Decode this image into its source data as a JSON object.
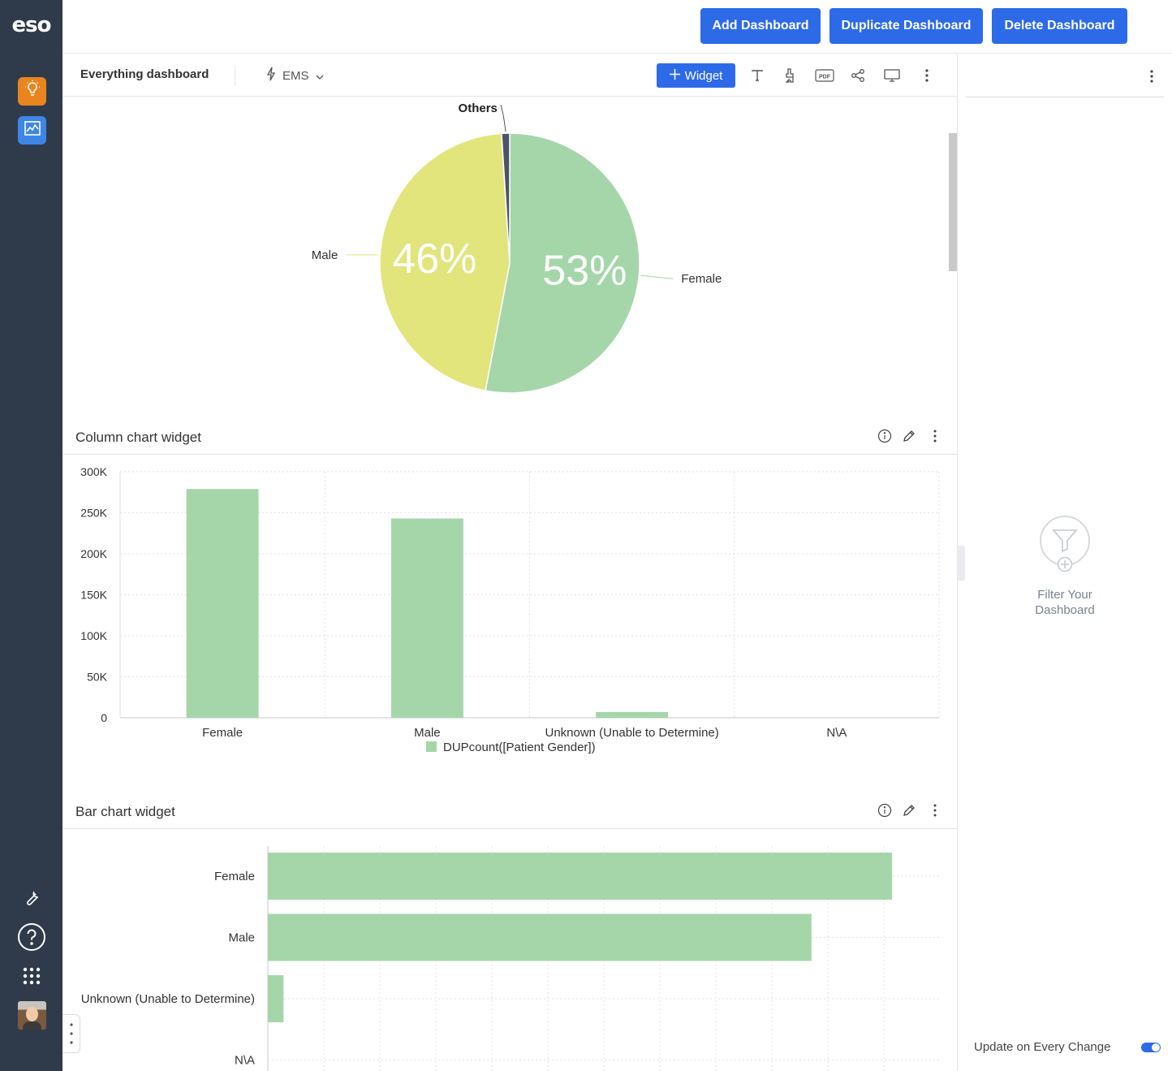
{
  "brand": {
    "logo_text": "eso"
  },
  "rail": {
    "apps": [
      {
        "icon": "lightbulb-icon",
        "color": "#e9851f"
      },
      {
        "icon": "analytics-chart-icon",
        "color": "#3d86e6"
      }
    ],
    "bottom_icons": [
      "wrench-icon",
      "help-icon",
      "app-grid-icon",
      "avatar"
    ]
  },
  "header": {
    "add_label": "Add Dashboard",
    "duplicate_label": "Duplicate Dashboard",
    "delete_label": "Delete Dashboard"
  },
  "toolbar": {
    "dashboard_title": "Everything dashboard",
    "datasource_label": "EMS",
    "widget_button_label": "Widget"
  },
  "pie_widget": {
    "chart_data": {
      "type": "pie",
      "slices": [
        {
          "label": "Female",
          "percent": 53,
          "percent_label": "53%",
          "color": "#a5d6aa"
        },
        {
          "label": "Male",
          "percent": 46,
          "percent_label": "46%",
          "color": "#e1e57c"
        },
        {
          "label": "Others",
          "percent": 1,
          "percent_label": "",
          "color": "#4e5467"
        }
      ]
    }
  },
  "column_widget": {
    "title": "Column chart widget",
    "chart_data": {
      "type": "bar",
      "categories": [
        "Female",
        "Male",
        "Unknown (Unable to Determine)",
        "N\\A"
      ],
      "series": [
        {
          "name": "DUPcount([Patient Gender])",
          "values": [
            279000,
            243000,
            7000,
            0
          ]
        }
      ],
      "ylim": [
        0,
        300000
      ],
      "yticks": [
        0,
        50000,
        100000,
        150000,
        200000,
        250000,
        300000
      ],
      "ytick_labels": [
        "0",
        "50K",
        "100K",
        "150K",
        "200K",
        "250K",
        "300K"
      ],
      "legend": "bottom-center",
      "color": "#a5d6aa",
      "grid": true
    }
  },
  "bar_widget": {
    "title": "Bar chart widget",
    "chart_data": {
      "type": "bar",
      "orientation": "horizontal",
      "categories": [
        "Female",
        "Male",
        "Unknown (Unable to Determine)",
        "N\\A"
      ],
      "values": [
        279000,
        243000,
        7000,
        0
      ],
      "xlim": [
        0,
        300000
      ],
      "color": "#a5d6aa",
      "grid": true
    }
  },
  "right_panel": {
    "filter_empty_text": "Filter Your Dashboard",
    "update_label": "Update on Every Change",
    "update_enabled": true
  }
}
